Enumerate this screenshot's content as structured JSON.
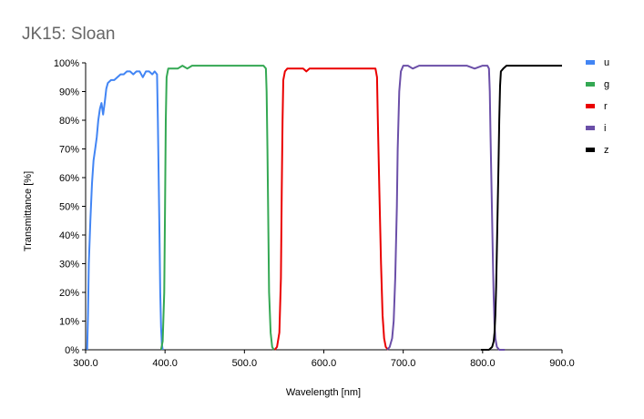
{
  "chart_data": {
    "type": "line",
    "title": "JK15: Sloan",
    "xlabel": "Wavelength [nm]",
    "ylabel": "Transmittance [%]",
    "xlim": [
      300,
      900
    ],
    "ylim": [
      0,
      100
    ],
    "x_ticks": [
      "300.0",
      "400.0",
      "500.0",
      "600.0",
      "700.0",
      "800.0",
      "900.0"
    ],
    "y_ticks": [
      "0%",
      "10%",
      "20%",
      "30%",
      "40%",
      "50%",
      "60%",
      "70%",
      "80%",
      "90%",
      "100%"
    ],
    "grid": false,
    "legend_position": "right",
    "series": [
      {
        "name": "u",
        "color": "#4285f4",
        "points": [
          [
            302,
            0
          ],
          [
            303,
            12
          ],
          [
            304,
            30
          ],
          [
            306,
            45
          ],
          [
            308,
            58
          ],
          [
            310,
            66
          ],
          [
            312,
            70
          ],
          [
            314,
            74
          ],
          [
            316,
            80
          ],
          [
            318,
            84
          ],
          [
            320,
            86
          ],
          [
            322,
            82
          ],
          [
            324,
            86
          ],
          [
            326,
            91
          ],
          [
            328,
            93
          ],
          [
            332,
            94
          ],
          [
            336,
            94
          ],
          [
            340,
            95
          ],
          [
            344,
            96
          ],
          [
            348,
            96
          ],
          [
            352,
            97
          ],
          [
            356,
            97
          ],
          [
            360,
            96
          ],
          [
            364,
            97
          ],
          [
            368,
            97
          ],
          [
            372,
            95
          ],
          [
            376,
            97
          ],
          [
            380,
            97
          ],
          [
            384,
            96
          ],
          [
            387,
            97
          ],
          [
            390,
            96
          ],
          [
            391,
            80
          ],
          [
            392,
            60
          ],
          [
            393,
            40
          ],
          [
            394,
            20
          ],
          [
            395,
            8
          ],
          [
            396,
            2
          ],
          [
            397,
            0
          ]
        ]
      },
      {
        "name": "g",
        "color": "#34a853",
        "points": [
          [
            395,
            0
          ],
          [
            397,
            3
          ],
          [
            399,
            20
          ],
          [
            400,
            50
          ],
          [
            401,
            80
          ],
          [
            402,
            95
          ],
          [
            404,
            98
          ],
          [
            410,
            98
          ],
          [
            416,
            98
          ],
          [
            422,
            99
          ],
          [
            428,
            98
          ],
          [
            434,
            99
          ],
          [
            440,
            99
          ],
          [
            450,
            99
          ],
          [
            460,
            99
          ],
          [
            470,
            99
          ],
          [
            480,
            99
          ],
          [
            490,
            99
          ],
          [
            500,
            99
          ],
          [
            510,
            99
          ],
          [
            518,
            99
          ],
          [
            524,
            99
          ],
          [
            527,
            98
          ],
          [
            528,
            90
          ],
          [
            529,
            70
          ],
          [
            530,
            45
          ],
          [
            531,
            20
          ],
          [
            533,
            6
          ],
          [
            535,
            1
          ],
          [
            537,
            0
          ]
        ]
      },
      {
        "name": "r",
        "color": "#ea0000",
        "points": [
          [
            538,
            0
          ],
          [
            541,
            1
          ],
          [
            544,
            6
          ],
          [
            546,
            25
          ],
          [
            547,
            55
          ],
          [
            548,
            80
          ],
          [
            549,
            94
          ],
          [
            551,
            97
          ],
          [
            554,
            98
          ],
          [
            558,
            98
          ],
          [
            562,
            98
          ],
          [
            566,
            98
          ],
          [
            570,
            98
          ],
          [
            574,
            98
          ],
          [
            578,
            97
          ],
          [
            582,
            98
          ],
          [
            586,
            98
          ],
          [
            590,
            98
          ],
          [
            596,
            98
          ],
          [
            604,
            98
          ],
          [
            612,
            98
          ],
          [
            620,
            98
          ],
          [
            630,
            98
          ],
          [
            640,
            98
          ],
          [
            650,
            98
          ],
          [
            660,
            98
          ],
          [
            665,
            98
          ],
          [
            667,
            95
          ],
          [
            668,
            80
          ],
          [
            670,
            55
          ],
          [
            672,
            30
          ],
          [
            674,
            12
          ],
          [
            676,
            4
          ],
          [
            678,
            1
          ],
          [
            681,
            0
          ]
        ]
      },
      {
        "name": "i",
        "color": "#6b4fa8",
        "points": [
          [
            680,
            0
          ],
          [
            683,
            1
          ],
          [
            686,
            4
          ],
          [
            688,
            10
          ],
          [
            690,
            25
          ],
          [
            692,
            50
          ],
          [
            693,
            70
          ],
          [
            695,
            90
          ],
          [
            697,
            97
          ],
          [
            700,
            99
          ],
          [
            706,
            99
          ],
          [
            712,
            98
          ],
          [
            720,
            99
          ],
          [
            730,
            99
          ],
          [
            740,
            99
          ],
          [
            750,
            99
          ],
          [
            760,
            99
          ],
          [
            770,
            99
          ],
          [
            780,
            99
          ],
          [
            790,
            98
          ],
          [
            800,
            99
          ],
          [
            806,
            99
          ],
          [
            808,
            98
          ],
          [
            809,
            90
          ],
          [
            810,
            75
          ],
          [
            811,
            60
          ],
          [
            812,
            45
          ],
          [
            813,
            30
          ],
          [
            814,
            18
          ],
          [
            815,
            9
          ],
          [
            816,
            4
          ],
          [
            818,
            1
          ],
          [
            821,
            0
          ],
          [
            828,
            0
          ]
        ]
      },
      {
        "name": "z",
        "color": "#000000",
        "points": [
          [
            798,
            0
          ],
          [
            808,
            0
          ],
          [
            812,
            1
          ],
          [
            814,
            3
          ],
          [
            815,
            6
          ],
          [
            816,
            12
          ],
          [
            817,
            22
          ],
          [
            818,
            35
          ],
          [
            819,
            50
          ],
          [
            820,
            65
          ],
          [
            821,
            80
          ],
          [
            822,
            92
          ],
          [
            823,
            97
          ],
          [
            826,
            98
          ],
          [
            830,
            99
          ],
          [
            836,
            99
          ],
          [
            842,
            99
          ],
          [
            848,
            99
          ],
          [
            854,
            99
          ],
          [
            860,
            99
          ],
          [
            866,
            99
          ],
          [
            872,
            99
          ],
          [
            878,
            99
          ],
          [
            884,
            99
          ],
          [
            890,
            99
          ],
          [
            896,
            99
          ],
          [
            900,
            99
          ]
        ]
      }
    ]
  }
}
